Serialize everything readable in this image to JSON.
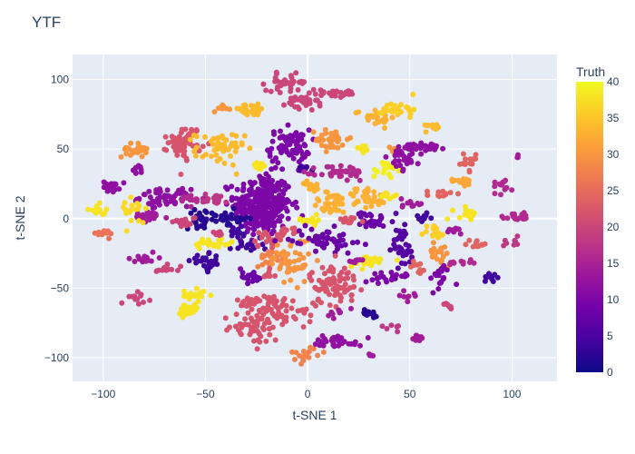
{
  "chart_data": {
    "type": "scatter",
    "title": "YTF",
    "xlabel": "t-SNE 1",
    "ylabel": "t-SNE 2",
    "xlim": [
      -115,
      122
    ],
    "ylim": [
      -117,
      118
    ],
    "x_ticks": [
      -100,
      -50,
      0,
      50,
      100
    ],
    "y_ticks": [
      -100,
      -50,
      0,
      50,
      100
    ],
    "x_tick_labels": [
      "−100",
      "−50",
      "0",
      "50",
      "100"
    ],
    "y_tick_labels": [
      "−100",
      "−50",
      "0",
      "50",
      "100"
    ],
    "grid": true,
    "plot_background": "#e5ecf6",
    "colorbar": {
      "title": "Truth",
      "range": [
        0,
        40
      ],
      "ticks": [
        0,
        5,
        10,
        15,
        20,
        25,
        30,
        35,
        40
      ],
      "tick_labels": [
        "0",
        "5",
        "10",
        "15",
        "20",
        "25",
        "30",
        "35",
        "40"
      ],
      "colorscale": [
        "#0d0887",
        "#46039f",
        "#7201a8",
        "#9c179e",
        "#bd3786",
        "#d8576b",
        "#ed7953",
        "#fb9f3a",
        "#fdca26",
        "#f0f921"
      ],
      "placement": "right"
    },
    "clusters": [
      {
        "x": -22,
        "y": 10,
        "sx": 7,
        "sy": 11,
        "n": 320,
        "truth": 10
      },
      {
        "x": -9,
        "y": 52,
        "sx": 5,
        "sy": 6,
        "n": 80,
        "truth": 10
      },
      {
        "x": -2,
        "y": 36,
        "sx": 1.5,
        "sy": 1.2,
        "n": 12,
        "truth": 4
      },
      {
        "x": -70,
        "y": 15,
        "sx": 6,
        "sy": 3,
        "n": 60,
        "truth": 12
      },
      {
        "x": -78,
        "y": 1,
        "sx": 5,
        "sy": 2,
        "n": 25,
        "truth": 14
      },
      {
        "x": -57,
        "y": 14,
        "sx": 3,
        "sy": 2,
        "n": 15,
        "truth": 16
      },
      {
        "x": -45,
        "y": 14,
        "sx": 3,
        "sy": 2,
        "n": 18,
        "truth": 18
      },
      {
        "x": -96,
        "y": 23,
        "sx": 2,
        "sy": 2,
        "n": 20,
        "truth": 12
      },
      {
        "x": -85,
        "y": 49,
        "sx": 3,
        "sy": 2.5,
        "n": 25,
        "truth": 30
      },
      {
        "x": -83,
        "y": 35,
        "sx": 1.5,
        "sy": 1.5,
        "n": 10,
        "truth": 12
      },
      {
        "x": -60,
        "y": 55,
        "sx": 4,
        "sy": 6,
        "n": 60,
        "truth": 22
      },
      {
        "x": -43,
        "y": 50,
        "sx": 6,
        "sy": 6,
        "n": 50,
        "truth": 34
      },
      {
        "x": -24,
        "y": 38,
        "sx": 2,
        "sy": 1.5,
        "n": 15,
        "truth": 38
      },
      {
        "x": -28,
        "y": 78,
        "sx": 5,
        "sy": 2,
        "n": 30,
        "truth": 34
      },
      {
        "x": -42,
        "y": 80,
        "sx": 2,
        "sy": 1.5,
        "n": 10,
        "truth": 30
      },
      {
        "x": -10,
        "y": 98,
        "sx": 5,
        "sy": 3,
        "n": 35,
        "truth": 20
      },
      {
        "x": -3,
        "y": 83,
        "sx": 4,
        "sy": 3,
        "n": 30,
        "truth": 20
      },
      {
        "x": 12,
        "y": 90,
        "sx": 8,
        "sy": 1.5,
        "n": 30,
        "truth": 20
      },
      {
        "x": 33,
        "y": 73,
        "sx": 5,
        "sy": 3,
        "n": 25,
        "truth": 33
      },
      {
        "x": 45,
        "y": 79,
        "sx": 4,
        "sy": 3,
        "n": 25,
        "truth": 36
      },
      {
        "x": 12,
        "y": 57,
        "sx": 4,
        "sy": 4,
        "n": 35,
        "truth": 30
      },
      {
        "x": 27,
        "y": 50,
        "sx": 1.5,
        "sy": 1.5,
        "n": 10,
        "truth": 38
      },
      {
        "x": 42,
        "y": 50,
        "sx": 1.5,
        "sy": 1.5,
        "n": 10,
        "truth": 30
      },
      {
        "x": 38,
        "y": 35,
        "sx": 3,
        "sy": 3,
        "n": 20,
        "truth": 39
      },
      {
        "x": 17,
        "y": 33,
        "sx": 6,
        "sy": 3,
        "n": 40,
        "truth": 16
      },
      {
        "x": 2,
        "y": 23,
        "sx": 2,
        "sy": 2,
        "n": 15,
        "truth": 33
      },
      {
        "x": 12,
        "y": 11,
        "sx": 5,
        "sy": 4,
        "n": 40,
        "truth": 33
      },
      {
        "x": 29,
        "y": 15,
        "sx": 5,
        "sy": 4,
        "n": 35,
        "truth": 33
      },
      {
        "x": 49,
        "y": 45,
        "sx": 4,
        "sy": 5,
        "n": 40,
        "truth": 12
      },
      {
        "x": 58,
        "y": 52,
        "sx": 5,
        "sy": 1.5,
        "n": 25,
        "truth": 12
      },
      {
        "x": 62,
        "y": 67,
        "sx": 2,
        "sy": 2,
        "n": 10,
        "truth": 34
      },
      {
        "x": 78,
        "y": 40,
        "sx": 3,
        "sy": 3,
        "n": 15,
        "truth": 24
      },
      {
        "x": 76,
        "y": 27,
        "sx": 3,
        "sy": 1.5,
        "n": 15,
        "truth": 32
      },
      {
        "x": 95,
        "y": 24,
        "sx": 4,
        "sy": 3,
        "n": 15,
        "truth": 16
      },
      {
        "x": 100,
        "y": 2,
        "sx": 3,
        "sy": 1.5,
        "n": 10,
        "truth": 16
      },
      {
        "x": 103,
        "y": 45,
        "sx": 0.5,
        "sy": 0.5,
        "n": 3,
        "truth": 14
      },
      {
        "x": 64,
        "y": 17,
        "sx": 3,
        "sy": 2,
        "n": 12,
        "truth": 24
      },
      {
        "x": 52,
        "y": 11,
        "sx": 3,
        "sy": 2,
        "n": 12,
        "truth": 14
      },
      {
        "x": 78,
        "y": 4,
        "sx": 3,
        "sy": 2,
        "n": 15,
        "truth": 38
      },
      {
        "x": 40,
        "y": 16,
        "sx": 2,
        "sy": 2,
        "n": 10,
        "truth": 38
      },
      {
        "x": 1,
        "y": -1,
        "sx": 3,
        "sy": 1.5,
        "n": 15,
        "truth": 38
      },
      {
        "x": -50,
        "y": 0,
        "sx": 5,
        "sy": 3,
        "n": 30,
        "truth": 2
      },
      {
        "x": -37,
        "y": 0,
        "sx": 4,
        "sy": 3,
        "n": 20,
        "truth": 2
      },
      {
        "x": -30,
        "y": -18,
        "sx": 4,
        "sy": 3,
        "n": 20,
        "truth": 4
      },
      {
        "x": -49,
        "y": -32,
        "sx": 4,
        "sy": 3,
        "n": 30,
        "truth": 4
      },
      {
        "x": -28,
        "y": -42,
        "sx": 3,
        "sy": 2,
        "n": 20,
        "truth": 8
      },
      {
        "x": -46,
        "y": -18,
        "sx": 5,
        "sy": 2,
        "n": 25,
        "truth": 38
      },
      {
        "x": -60,
        "y": -2,
        "sx": 3,
        "sy": 2,
        "n": 15,
        "truth": 20
      },
      {
        "x": -44,
        "y": -10,
        "sx": 1.5,
        "sy": 1.5,
        "n": 8,
        "truth": 20
      },
      {
        "x": -80,
        "y": -29,
        "sx": 3,
        "sy": 3,
        "n": 15,
        "truth": 14
      },
      {
        "x": -100,
        "y": -11,
        "sx": 3,
        "sy": 1.5,
        "n": 12,
        "truth": 26
      },
      {
        "x": -103,
        "y": 6,
        "sx": 2,
        "sy": 2,
        "n": 12,
        "truth": 38
      },
      {
        "x": -82,
        "y": -57,
        "sx": 3,
        "sy": 2,
        "n": 12,
        "truth": 20
      },
      {
        "x": -68,
        "y": -35,
        "sx": 3,
        "sy": 2,
        "n": 12,
        "truth": 20
      },
      {
        "x": -56,
        "y": -55,
        "sx": 3,
        "sy": 2,
        "n": 20,
        "truth": 38
      },
      {
        "x": -58,
        "y": -67,
        "sx": 3,
        "sy": 3,
        "n": 25,
        "truth": 38
      },
      {
        "x": -85,
        "y": 7,
        "sx": 3,
        "sy": 6,
        "n": 20,
        "truth": 37
      },
      {
        "x": -18,
        "y": -28,
        "sx": 4,
        "sy": 3,
        "n": 20,
        "truth": 28
      },
      {
        "x": -8,
        "y": -30,
        "sx": 5,
        "sy": 8,
        "n": 50,
        "truth": 30
      },
      {
        "x": -20,
        "y": -15,
        "sx": 4,
        "sy": 3,
        "n": 20,
        "truth": 22
      },
      {
        "x": -10,
        "y": -8,
        "sx": 2,
        "sy": 2,
        "n": 10,
        "truth": 22
      },
      {
        "x": 8,
        "y": -15,
        "sx": 8,
        "sy": 4,
        "n": 60,
        "truth": 8
      },
      {
        "x": 30,
        "y": -1,
        "sx": 4,
        "sy": 3,
        "n": 25,
        "truth": 8
      },
      {
        "x": 13,
        "y": -47,
        "sx": 6,
        "sy": 7,
        "n": 80,
        "truth": 22
      },
      {
        "x": -22,
        "y": -60,
        "sx": 6,
        "sy": 3,
        "n": 40,
        "truth": 22
      },
      {
        "x": -28,
        "y": -77,
        "sx": 6,
        "sy": 3,
        "n": 30,
        "truth": 22
      },
      {
        "x": -12,
        "y": -68,
        "sx": 8,
        "sy": 5,
        "n": 50,
        "truth": 22
      },
      {
        "x": -25,
        "y": -85,
        "sx": 4,
        "sy": 3,
        "n": 15,
        "truth": 22
      },
      {
        "x": 0,
        "y": -97,
        "sx": 4,
        "sy": 3,
        "n": 20,
        "truth": 28
      },
      {
        "x": 15,
        "y": -88,
        "sx": 6,
        "sy": 2,
        "n": 30,
        "truth": 12
      },
      {
        "x": 30,
        "y": -68,
        "sx": 3,
        "sy": 2,
        "n": 15,
        "truth": 2
      },
      {
        "x": 30,
        "y": -98,
        "sx": 1,
        "sy": 1,
        "n": 5,
        "truth": 14
      },
      {
        "x": 30,
        "y": -31,
        "sx": 5,
        "sy": 2,
        "n": 25,
        "truth": 38
      },
      {
        "x": 45,
        "y": -20,
        "sx": 4,
        "sy": 10,
        "n": 40,
        "truth": 6
      },
      {
        "x": 42,
        "y": -42,
        "sx": 5,
        "sy": 2,
        "n": 20,
        "truth": 10
      },
      {
        "x": 53,
        "y": -35,
        "sx": 2,
        "sy": 2,
        "n": 10,
        "truth": 24
      },
      {
        "x": 65,
        "y": -25,
        "sx": 3,
        "sy": 4,
        "n": 20,
        "truth": 30
      },
      {
        "x": 63,
        "y": -10,
        "sx": 3,
        "sy": 3,
        "n": 15,
        "truth": 36
      },
      {
        "x": 57,
        "y": 1,
        "sx": 2,
        "sy": 2,
        "n": 10,
        "truth": 4
      },
      {
        "x": 72,
        "y": -8,
        "sx": 3,
        "sy": 1.5,
        "n": 10,
        "truth": 14
      },
      {
        "x": 82,
        "y": -18,
        "sx": 3,
        "sy": 1.5,
        "n": 10,
        "truth": 24
      },
      {
        "x": 75,
        "y": -32,
        "sx": 3,
        "sy": 2,
        "n": 10,
        "truth": 16
      },
      {
        "x": 65,
        "y": -43,
        "sx": 3,
        "sy": 5,
        "n": 20,
        "truth": 10
      },
      {
        "x": 68,
        "y": -62,
        "sx": 2,
        "sy": 1.5,
        "n": 8,
        "truth": 20
      },
      {
        "x": 55,
        "y": -86,
        "sx": 2,
        "sy": 1.5,
        "n": 8,
        "truth": 14
      },
      {
        "x": 90,
        "y": -42,
        "sx": 2,
        "sy": 2,
        "n": 12,
        "truth": 4
      },
      {
        "x": 105,
        "y": 1,
        "sx": 2,
        "sy": 1.5,
        "n": 8,
        "truth": 16
      },
      {
        "x": 100,
        "y": -17,
        "sx": 2,
        "sy": 1.5,
        "n": 8,
        "truth": 18
      },
      {
        "x": 48,
        "y": -55,
        "sx": 2,
        "sy": 2,
        "n": 8,
        "truth": 14
      },
      {
        "x": 43,
        "y": -78,
        "sx": 2,
        "sy": 1.5,
        "n": 6,
        "truth": 18
      },
      {
        "x": 14,
        "y": -68,
        "sx": 2,
        "sy": 1.5,
        "n": 8,
        "truth": 14
      },
      {
        "x": 23,
        "y": -30,
        "sx": 2,
        "sy": 1.5,
        "n": 8,
        "truth": 14
      },
      {
        "x": -35,
        "y": -10,
        "sx": 2,
        "sy": 2,
        "n": 10,
        "truth": 4
      },
      {
        "x": -20,
        "y": -40,
        "sx": 2,
        "sy": 1.5,
        "n": 8,
        "truth": 22
      },
      {
        "x": 20,
        "y": -2,
        "sx": 3,
        "sy": 1.5,
        "n": 12,
        "truth": 22
      }
    ]
  }
}
